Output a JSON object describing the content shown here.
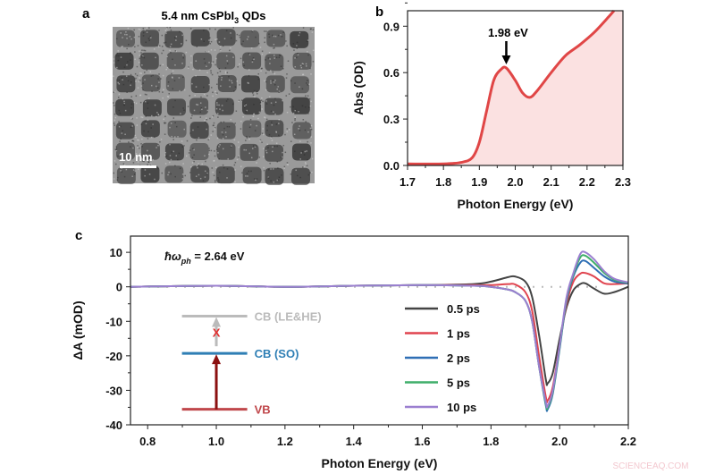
{
  "panels": {
    "a": "a",
    "b": "b",
    "c": "c"
  },
  "panel_a": {
    "title_main": "5.4 nm CsPbI",
    "title_sub": "3",
    "title_end": " QDs",
    "scale_bar_label": "10 nm"
  },
  "watermark": "SCIENCEAQ.COM",
  "chart_data": [
    {
      "id": "b",
      "type": "area",
      "xlabel": "Photon Energy (eV)",
      "ylabel": "Abs (OD)",
      "xlim": [
        1.7,
        2.3
      ],
      "ylim": [
        0,
        1.0
      ],
      "xticks": [
        "1.7",
        "1.8",
        "1.9",
        "2.0",
        "2.1",
        "2.2",
        "2.3"
      ],
      "yticks": [
        "0.0",
        "0.3",
        "0.6",
        "0.9"
      ],
      "annotation": {
        "text": "1.98 eV",
        "x": 1.975,
        "y": 0.63
      },
      "color": "#e04646",
      "fill": "#fbe1e1",
      "x": [
        1.7,
        1.8,
        1.85,
        1.88,
        1.9,
        1.92,
        1.94,
        1.96,
        1.975,
        2.0,
        2.02,
        2.04,
        2.06,
        2.1,
        2.14,
        2.18,
        2.22,
        2.26,
        2.275
      ],
      "y": [
        0.01,
        0.01,
        0.02,
        0.05,
        0.15,
        0.35,
        0.55,
        0.62,
        0.63,
        0.55,
        0.47,
        0.44,
        0.48,
        0.6,
        0.71,
        0.78,
        0.86,
        0.96,
        1.0
      ]
    },
    {
      "id": "c",
      "type": "line",
      "xlabel": "Photon Energy (eV)",
      "ylabel": "ΔA (mOD)",
      "xlim": [
        0.75,
        2.2
      ],
      "ylim": [
        -40,
        14.7
      ],
      "xticks": [
        "0.8",
        "1.0",
        "1.2",
        "1.4",
        "1.6",
        "1.8",
        "2.0",
        "2.2"
      ],
      "yticks": [
        "10",
        "0",
        "-10",
        "-20",
        "-30",
        "-40"
      ],
      "pump": {
        "main": "ħω",
        "sub": "ph",
        "end": " = 2.64 eV"
      },
      "legend_placement": "center",
      "x": [
        0.75,
        1.0,
        1.2,
        1.4,
        1.6,
        1.75,
        1.8,
        1.85,
        1.87,
        1.9,
        1.92,
        1.94,
        1.96,
        1.965,
        1.98,
        2.0,
        2.02,
        2.04,
        2.06,
        2.075,
        2.1,
        2.13,
        2.16,
        2.2
      ],
      "series": [
        {
          "name": "0.5 ps",
          "color": "#444444",
          "values": [
            0,
            0.3,
            0,
            0.3,
            0.5,
            0.8,
            1.5,
            2.8,
            3,
            1.5,
            -3,
            -14,
            -27,
            -28,
            -25,
            -15,
            -6,
            -1,
            0.8,
            1,
            -0.5,
            -2,
            -1.5,
            0
          ]
        },
        {
          "name": "1 ps",
          "color": "#e0444f",
          "values": [
            0,
            0.3,
            0,
            0.3,
            0.5,
            0.5,
            0.5,
            0.8,
            0.7,
            -1.5,
            -7,
            -20,
            -32,
            -33,
            -29,
            -17,
            -5,
            1.5,
            3.8,
            4,
            3,
            1,
            0.8,
            1
          ]
        },
        {
          "name": "2 ps",
          "color": "#2f6fb5",
          "values": [
            0,
            0.3,
            0,
            0.3,
            0.5,
            0.3,
            0,
            -0.8,
            -1.5,
            -4,
            -10,
            -23,
            -34.5,
            -35.5,
            -31,
            -18,
            -4,
            3,
            7,
            7.5,
            5.5,
            3,
            1.5,
            1
          ]
        },
        {
          "name": "5 ps",
          "color": "#3fae6a",
          "values": [
            0,
            0.3,
            0,
            0.3,
            0.5,
            0.3,
            0,
            -0.8,
            -1.5,
            -4,
            -10,
            -23,
            -34,
            -35,
            -30.5,
            -17.5,
            -3.5,
            3.5,
            8.5,
            9,
            7,
            4,
            2,
            1.2
          ]
        },
        {
          "name": "10 ps",
          "color": "#9b7fd0",
          "values": [
            0,
            0.3,
            0,
            0.3,
            0.5,
            0.3,
            0,
            -0.8,
            -1.5,
            -4,
            -10,
            -23,
            -33.5,
            -34.5,
            -30,
            -17,
            -3,
            4,
            9.5,
            10,
            8,
            4.5,
            2.3,
            1.3
          ]
        }
      ],
      "diagram": {
        "levels": [
          {
            "label": "CB (LE&HE)",
            "value": -8.5,
            "color": "#bbbbbb"
          },
          {
            "label": "CB (SO)",
            "value": -19.3,
            "color": "#2f7fb5"
          },
          {
            "label": "VB",
            "value": -35.5,
            "color": "#c0474b"
          }
        ],
        "blocked_mark": "X",
        "blocked_color": "#e03030",
        "arrow_color": "#8b1010"
      }
    }
  ]
}
